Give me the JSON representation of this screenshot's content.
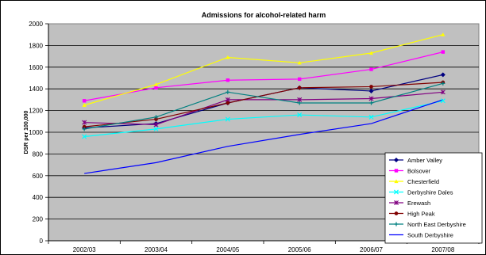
{
  "chart_data": {
    "type": "line",
    "title": "Admissions for alcohol-related harm",
    "xlabel": "",
    "ylabel": "DSR per 100,000",
    "x": [
      "2002/03",
      "2003/04",
      "2004/05",
      "2005/06",
      "2006/07",
      "2007/08"
    ],
    "ylim": [
      0,
      2000
    ],
    "yticks": [
      0,
      200,
      400,
      600,
      800,
      1000,
      1200,
      1400,
      1600,
      1800,
      2000
    ],
    "grid": true,
    "legend_position": "right",
    "plot_background": "#C0C0C0",
    "series": [
      {
        "name": "Amber Valley",
        "color": "#000080",
        "marker": "diamond",
        "values": [
          1040,
          1080,
          1270,
          1410,
          1380,
          1530
        ]
      },
      {
        "name": "Bolsover",
        "color": "#FF00FF",
        "marker": "square",
        "values": [
          1290,
          1410,
          1480,
          1490,
          1580,
          1740
        ]
      },
      {
        "name": "Chesterfield",
        "color": "#FFFF00",
        "marker": "triangle",
        "values": [
          1250,
          1440,
          1690,
          1640,
          1730,
          1900
        ]
      },
      {
        "name": "Derbyshire Dales",
        "color": "#00FFFF",
        "marker": "x",
        "values": [
          960,
          1030,
          1120,
          1160,
          1140,
          1290
        ]
      },
      {
        "name": "Erewash",
        "color": "#800080",
        "marker": "star",
        "values": [
          1090,
          1070,
          1300,
          1300,
          1310,
          1370
        ]
      },
      {
        "name": "High Peak",
        "color": "#800000",
        "marker": "circle",
        "values": [
          1050,
          1120,
          1270,
          1410,
          1420,
          1460
        ]
      },
      {
        "name": "North East Derbyshire",
        "color": "#008080",
        "marker": "plus",
        "values": [
          1030,
          1140,
          1370,
          1270,
          1270,
          1450
        ]
      },
      {
        "name": "South Derbyshire",
        "color": "#0000FF",
        "marker": "none",
        "values": [
          620,
          720,
          870,
          980,
          1080,
          1300
        ]
      }
    ]
  }
}
